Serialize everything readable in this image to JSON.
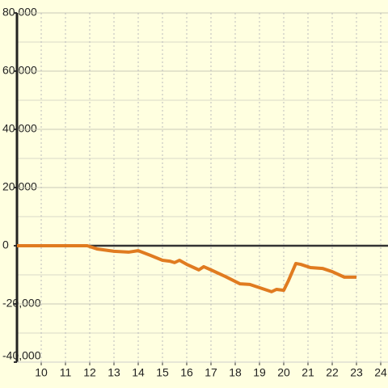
{
  "chart_data": {
    "type": "line",
    "x": [
      9,
      11.9,
      12.3,
      13,
      13.6,
      14,
      14.5,
      15,
      15.3,
      15.5,
      15.7,
      16,
      16.5,
      16.7,
      17,
      17.6,
      18.2,
      18.6,
      19,
      19.5,
      19.7,
      20,
      20.2,
      20.5,
      20.7,
      21.1,
      21.6,
      22,
      22.5,
      23
    ],
    "series": [
      {
        "color": "#e07b20",
        "values": [
          0,
          0,
          -1100,
          -1900,
          -2200,
          -1700,
          -3300,
          -5000,
          -5300,
          -5800,
          -5000,
          -6400,
          -8300,
          -7200,
          -8300,
          -10600,
          -13100,
          -13300,
          -14400,
          -15800,
          -15000,
          -15300,
          -11900,
          -6100,
          -6400,
          -7500,
          -7800,
          -8900,
          -10800,
          -10800
        ]
      }
    ],
    "xlim": [
      9,
      24.3
    ],
    "xticks": [
      10,
      11,
      12,
      13,
      14,
      15,
      16,
      17,
      18,
      19,
      20,
      21,
      22,
      23,
      24
    ],
    "ylim": [
      -40000,
      80000
    ],
    "yticks": [
      {
        "value": -40000,
        "label": "-40,000"
      },
      {
        "value": -20000,
        "label": "-20,000"
      },
      0,
      {
        "value": 20000,
        "label": "20,000"
      },
      {
        "value": 40000,
        "label": "40,000"
      },
      {
        "value": 60000,
        "label": "60,000"
      },
      {
        "value": 80000,
        "label": "80,000"
      }
    ],
    "grid": true
  }
}
